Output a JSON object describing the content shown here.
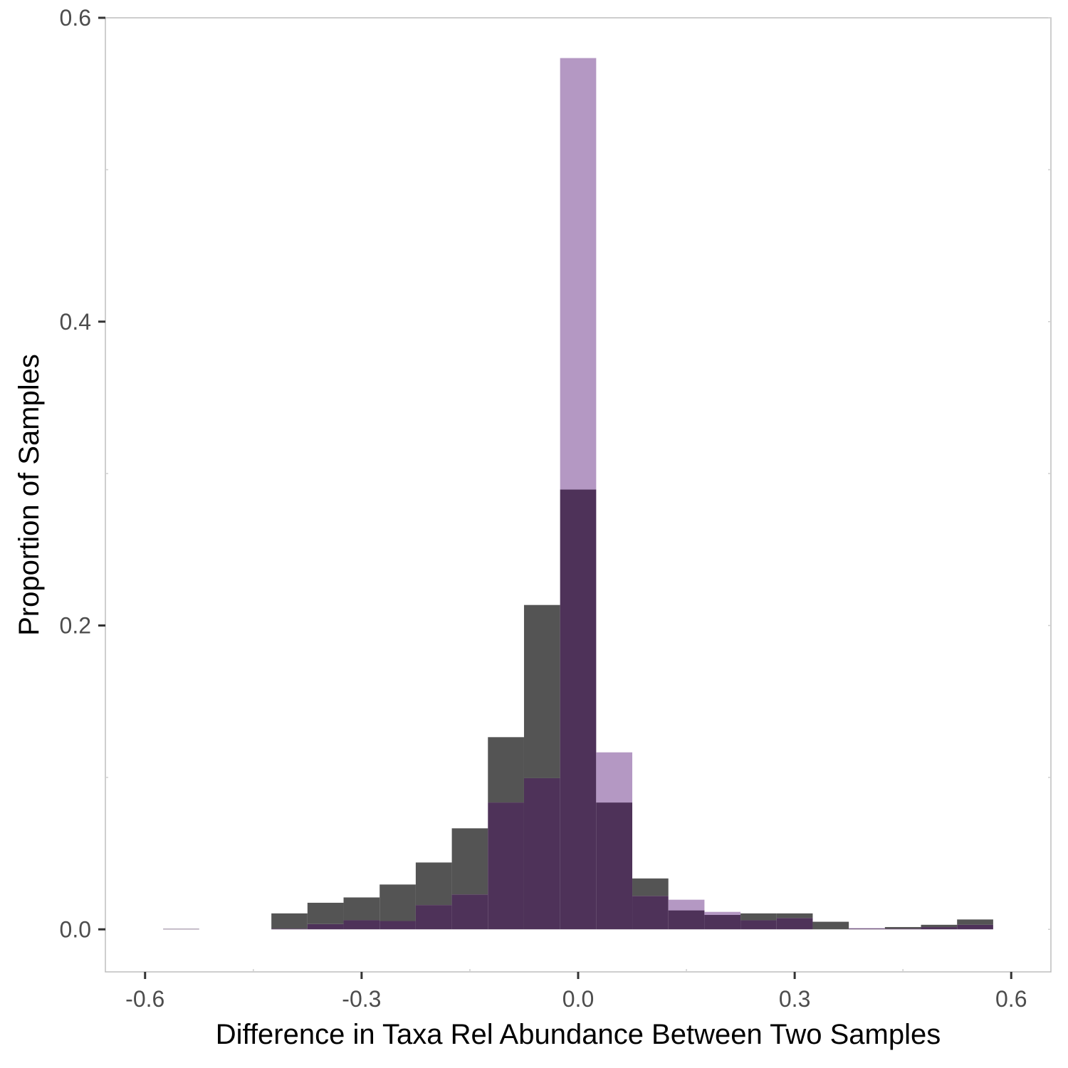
{
  "chart_data": {
    "type": "bar",
    "subtype": "overlaid-histogram",
    "xlabel": "Difference in Taxa Rel Abundance Between Two Samples",
    "ylabel": "Proportion of Samples",
    "xlim": [
      -0.655,
      0.655
    ],
    "ylim": [
      -0.028,
      0.6
    ],
    "x_ticks": [
      -0.6,
      -0.3,
      0.0,
      0.3,
      0.6
    ],
    "x_tick_labels": [
      "-0.6",
      "-0.3",
      "0.0",
      "0.3",
      "0.6"
    ],
    "y_ticks": [
      0.0,
      0.2,
      0.4,
      0.6
    ],
    "y_tick_labels": [
      "0.0",
      "0.2",
      "0.4",
      "0.6"
    ],
    "grid": false,
    "legend": "none",
    "bin_width": 0.05,
    "bin_centers": [
      -0.55,
      -0.5,
      -0.45,
      -0.4,
      -0.35,
      -0.3,
      -0.25,
      -0.2,
      -0.15,
      -0.1,
      -0.05,
      0.0,
      0.05,
      0.1,
      0.15,
      0.2,
      0.25,
      0.3,
      0.35,
      0.4,
      0.45,
      0.5,
      0.55
    ],
    "series": [
      {
        "color": "#545454",
        "values": [
          0.0003,
          0,
          0,
          0.0105,
          0.0175,
          0.021,
          0.0295,
          0.044,
          0.0665,
          0.1265,
          0.2135,
          0.2895,
          0.0835,
          0.0335,
          0.0125,
          0.0095,
          0.0105,
          0.0105,
          0.005,
          0.0005,
          0.0015,
          0.003,
          0.0065
        ]
      },
      {
        "color": "#b498c3",
        "values": [
          0.0003,
          0,
          0,
          0.0005,
          0.0035,
          0.006,
          0.0055,
          0.016,
          0.023,
          0.0835,
          0.0995,
          0.5735,
          0.1165,
          0.022,
          0.0195,
          0.0115,
          0.006,
          0.0075,
          0,
          0.0008,
          0.0005,
          0.0015,
          0.003
        ]
      }
    ],
    "overlap_color": "#4e3259"
  }
}
